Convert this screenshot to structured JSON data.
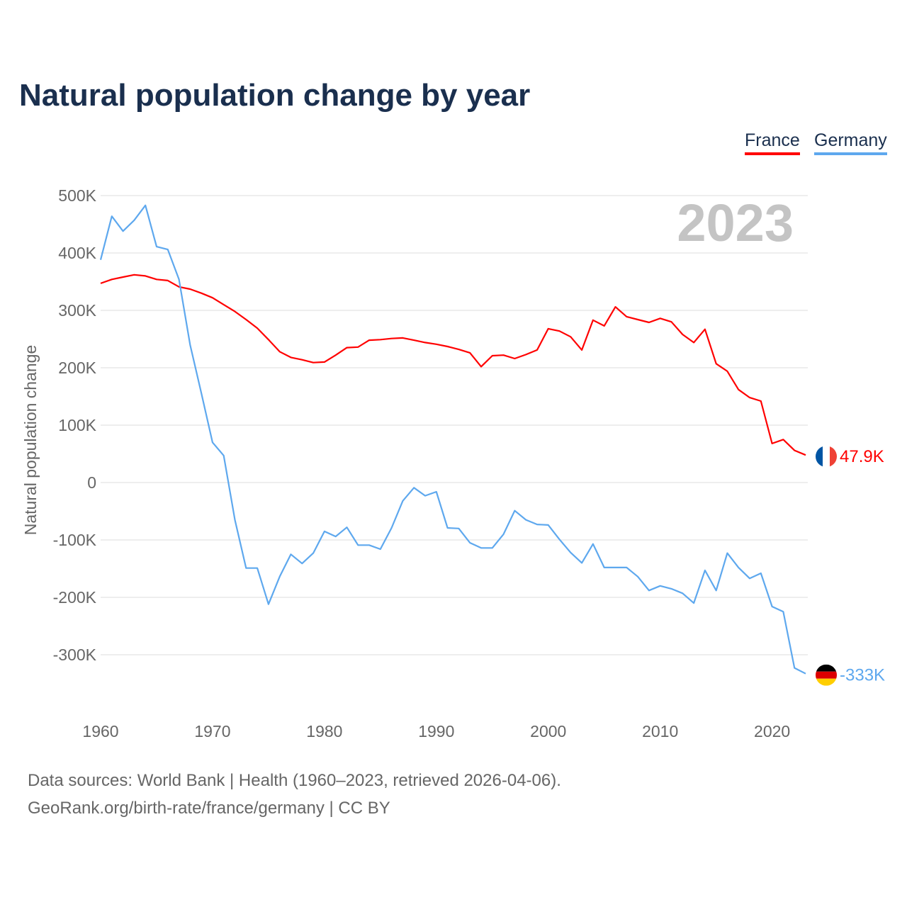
{
  "title": "Natural population change by year",
  "legend": {
    "france": "France",
    "germany": "Germany"
  },
  "year_watermark": "2023",
  "footer": {
    "line1": "Data sources: World Bank | Health (1960–2023, retrieved 2026-04-06).",
    "line2": "GeoRank.org/birth-rate/france/germany | CC BY"
  },
  "chart_data": {
    "type": "line",
    "title": "Natural population change by year",
    "xlabel": "",
    "ylabel": "Natural population change",
    "xlim": [
      1960,
      2023
    ],
    "ylim": [
      -400000,
      500000
    ],
    "x_ticks": [
      1960,
      1970,
      1980,
      1990,
      2000,
      2010,
      2020
    ],
    "y_ticks": [
      {
        "v": 500000,
        "l": "500K"
      },
      {
        "v": 400000,
        "l": "400K"
      },
      {
        "v": 300000,
        "l": "300K"
      },
      {
        "v": 200000,
        "l": "200K"
      },
      {
        "v": 100000,
        "l": "100K"
      },
      {
        "v": 0,
        "l": "0"
      },
      {
        "v": -100000,
        "l": "-100K"
      },
      {
        "v": -200000,
        "l": "-200K"
      },
      {
        "v": -300000,
        "l": "-300K"
      }
    ],
    "grid": true,
    "legend_position": "top-right",
    "start_year": 1960,
    "series": [
      {
        "name": "France",
        "color": "#ff0000",
        "end_label": "47.9K",
        "values_k": [
          347,
          354,
          358,
          362,
          360,
          354,
          352,
          341,
          337,
          330,
          322,
          310,
          298,
          284,
          269,
          249,
          228,
          218,
          214,
          209,
          210,
          222,
          235,
          236,
          248,
          249,
          251,
          252,
          248,
          244,
          241,
          237,
          232,
          226,
          202,
          221,
          222,
          216,
          223,
          231,
          268,
          264,
          254,
          231,
          283,
          273,
          306,
          289,
          284,
          279,
          286,
          280,
          258,
          244,
          267,
          207,
          194,
          162,
          148,
          142,
          68,
          75,
          56,
          47.9
        ]
      },
      {
        "name": "Germany",
        "color": "#5ea8ee",
        "end_label": "-333K",
        "values_k": [
          388,
          464,
          438,
          457,
          483,
          411,
          406,
          354,
          240,
          156,
          70,
          47,
          -65,
          -149,
          -149,
          -212,
          -164,
          -125,
          -141,
          -123,
          -85,
          -94,
          -78,
          -109,
          -109,
          -116,
          -79,
          -32,
          -9,
          -23,
          -16,
          -79,
          -80,
          -105,
          -114,
          -114,
          -90,
          -49,
          -65,
          -73,
          -74,
          -99,
          -122,
          -140,
          -107,
          -148,
          -148,
          -148,
          -164,
          -188,
          -180,
          -185,
          -193,
          -210,
          -153,
          -188,
          -123,
          -148,
          -167,
          -158,
          -216,
          -225,
          -323,
          -333
        ]
      }
    ]
  }
}
